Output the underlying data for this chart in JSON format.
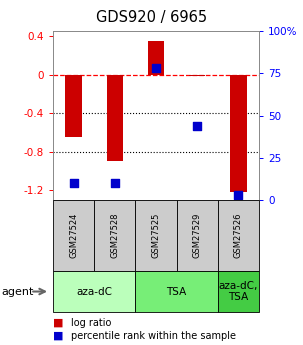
{
  "title": "GDS920 / 6965",
  "samples": [
    "GSM27524",
    "GSM27528",
    "GSM27525",
    "GSM27529",
    "GSM27526"
  ],
  "log_ratios": [
    -0.65,
    -0.9,
    0.35,
    -0.02,
    -1.22
  ],
  "percentiles": [
    10,
    10,
    78,
    44,
    3
  ],
  "ylim_left": [
    -1.3,
    0.45
  ],
  "ylim_right": [
    0,
    100
  ],
  "yticks_left": [
    -1.2,
    -0.8,
    -0.4,
    0.0,
    0.4
  ],
  "ytick_labels_left": [
    "-1.2",
    "-0.8",
    "-0.4",
    "0",
    "0.4"
  ],
  "yticks_right": [
    0,
    25,
    50,
    75,
    100
  ],
  "ytick_labels_right": [
    "0",
    "25",
    "50",
    "75",
    "100%"
  ],
  "group_configs": [
    {
      "label": "aza-dC",
      "start": 0,
      "end": 2,
      "color": "#bbffbb"
    },
    {
      "label": "TSA",
      "start": 2,
      "end": 4,
      "color": "#77ee77"
    },
    {
      "label": "aza-dC,\nTSA",
      "start": 4,
      "end": 5,
      "color": "#44cc44"
    }
  ],
  "bar_color": "#cc0000",
  "dot_color": "#0000cc",
  "bar_width": 0.4,
  "dot_size": 40,
  "legend_bar_label": "log ratio",
  "legend_dot_label": "percentile rank within the sample"
}
